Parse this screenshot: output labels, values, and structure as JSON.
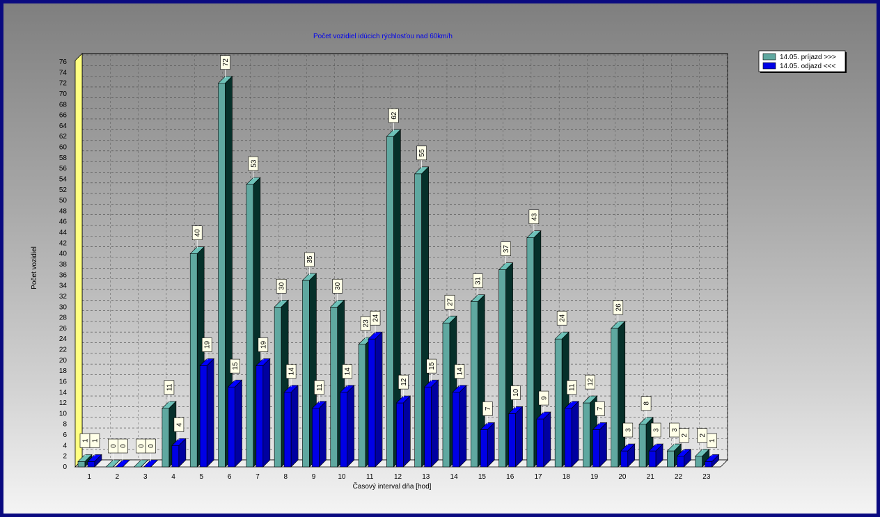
{
  "chart_data": {
    "type": "bar",
    "title": "Počet vozidiel idúcich rýchlosťou nad 60km/h",
    "xlabel": "Časový interval dňa [hod]",
    "ylabel": "Počet vozidiel",
    "ylim": [
      0,
      76
    ],
    "ytick_step": 2,
    "grid": true,
    "legend_position": "top-right",
    "categories": [
      "1",
      "2",
      "3",
      "4",
      "5",
      "6",
      "7",
      "8",
      "9",
      "10",
      "11",
      "12",
      "13",
      "14",
      "15",
      "16",
      "17",
      "18",
      "19",
      "20",
      "21",
      "22",
      "23"
    ],
    "series": [
      {
        "name": "14.05.  príjazd >>>",
        "color": "#5fa8a0",
        "values": [
          1,
          0,
          0,
          11,
          40,
          72,
          53,
          30,
          35,
          30,
          23,
          62,
          55,
          27,
          31,
          37,
          43,
          24,
          12,
          26,
          8,
          3,
          2
        ]
      },
      {
        "name": "14.05.  odjazd <<<",
        "color": "#0000e6",
        "values": [
          1,
          0,
          0,
          4,
          19,
          15,
          19,
          14,
          11,
          14,
          24,
          12,
          15,
          14,
          7,
          10,
          9,
          11,
          7,
          3,
          3,
          2,
          1
        ]
      }
    ]
  }
}
